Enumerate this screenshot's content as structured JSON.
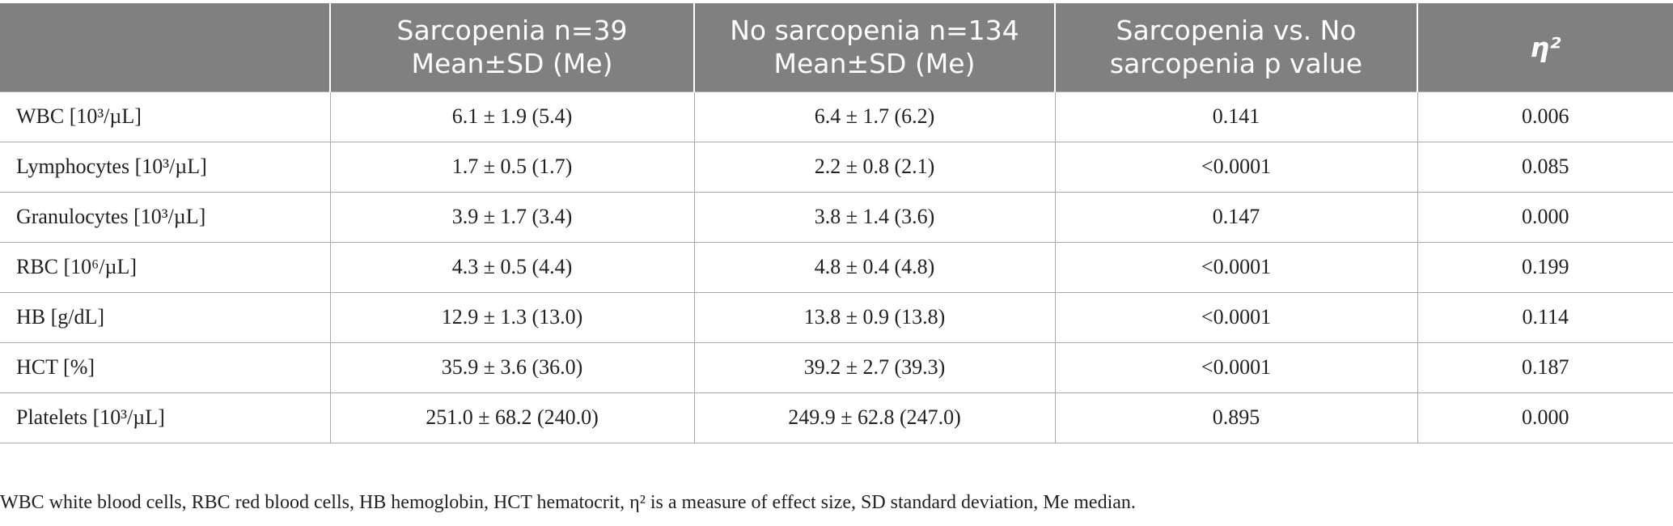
{
  "table": {
    "columns": [
      {
        "line1": "",
        "line2": ""
      },
      {
        "line1": "Sarcopenia n=39",
        "line2": "Mean±SD (Me)"
      },
      {
        "line1": "No sarcopenia n=134",
        "line2": "Mean±SD (Me)"
      },
      {
        "line1": "Sarcopenia vs. No",
        "line2": "sarcopenia p value"
      },
      {
        "line1": "η²",
        "line2": ""
      }
    ],
    "rows": [
      {
        "label": "WBC [10³/µL]",
        "sarcopenia": "6.1 ± 1.9 (5.4)",
        "no_sarcopenia": "6.4 ± 1.7 (6.2)",
        "p_value": "0.141",
        "eta_sq": "0.006"
      },
      {
        "label": "Lymphocytes [10³/µL]",
        "sarcopenia": "1.7 ± 0.5 (1.7)",
        "no_sarcopenia": "2.2 ± 0.8 (2.1)",
        "p_value": "<0.0001",
        "eta_sq": "0.085"
      },
      {
        "label": "Granulocytes [10³/µL]",
        "sarcopenia": "3.9 ± 1.7 (3.4)",
        "no_sarcopenia": "3.8 ± 1.4 (3.6)",
        "p_value": "0.147",
        "eta_sq": "0.000"
      },
      {
        "label": "RBC [10⁶/µL]",
        "sarcopenia": "4.3 ± 0.5 (4.4)",
        "no_sarcopenia": "4.8 ± 0.4 (4.8)",
        "p_value": "<0.0001",
        "eta_sq": "0.199"
      },
      {
        "label": "HB [g/dL]",
        "sarcopenia": "12.9 ± 1.3 (13.0)",
        "no_sarcopenia": "13.8 ± 0.9 (13.8)",
        "p_value": "<0.0001",
        "eta_sq": "0.114"
      },
      {
        "label": "HCT [%]",
        "sarcopenia": "35.9 ± 3.6 (36.0)",
        "no_sarcopenia": "39.2 ± 2.7 (39.3)",
        "p_value": "<0.0001",
        "eta_sq": "0.187"
      },
      {
        "label": "Platelets [10³/µL]",
        "sarcopenia": "251.0 ± 68.2 (240.0)",
        "no_sarcopenia": "249.9 ± 62.8 (247.0)",
        "p_value": "0.895",
        "eta_sq": "0.000"
      }
    ]
  },
  "footnote": "WBC white blood cells, RBC red blood cells, HB hemoglobin, HCT hematocrit, η² is a measure of effect size, SD standard deviation, Me median."
}
